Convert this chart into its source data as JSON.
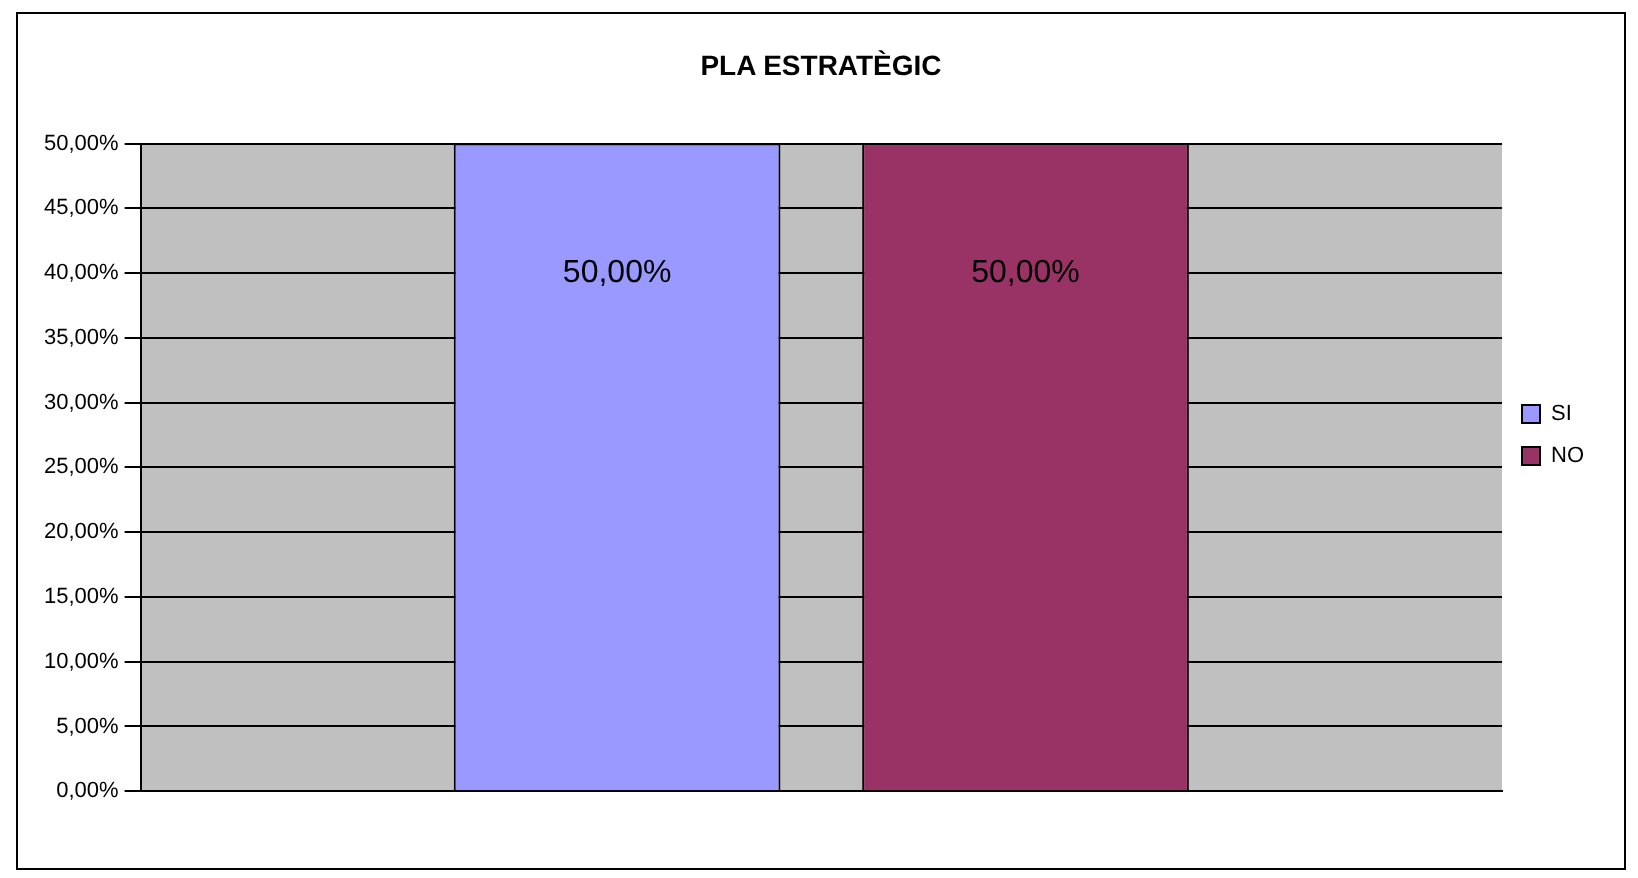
{
  "chart_data": {
    "type": "bar",
    "title": "PLA ESTRATÈGIC",
    "categories": [
      null
    ],
    "series": [
      {
        "name": "SI",
        "color": "#9999ff",
        "values": [
          50
        ],
        "value_labels": [
          "50,00%"
        ]
      },
      {
        "name": "NO",
        "color": "#993366",
        "values": [
          50
        ],
        "value_labels": [
          "50,00%"
        ]
      }
    ],
    "ylim": [
      0,
      50
    ],
    "yticks": [
      {
        "value": 0,
        "label": "0,00%"
      },
      {
        "value": 5,
        "label": "5,00%"
      },
      {
        "value": 10,
        "label": "10,00%"
      },
      {
        "value": 15,
        "label": "15,00%"
      },
      {
        "value": 20,
        "label": "20,00%"
      },
      {
        "value": 25,
        "label": "25,00%"
      },
      {
        "value": 30,
        "label": "30,00%"
      },
      {
        "value": 35,
        "label": "35,00%"
      },
      {
        "value": 40,
        "label": "40,00%"
      },
      {
        "value": 45,
        "label": "45,00%"
      },
      {
        "value": 50,
        "label": "50,00%"
      }
    ],
    "grid": "y",
    "legend": "right"
  }
}
